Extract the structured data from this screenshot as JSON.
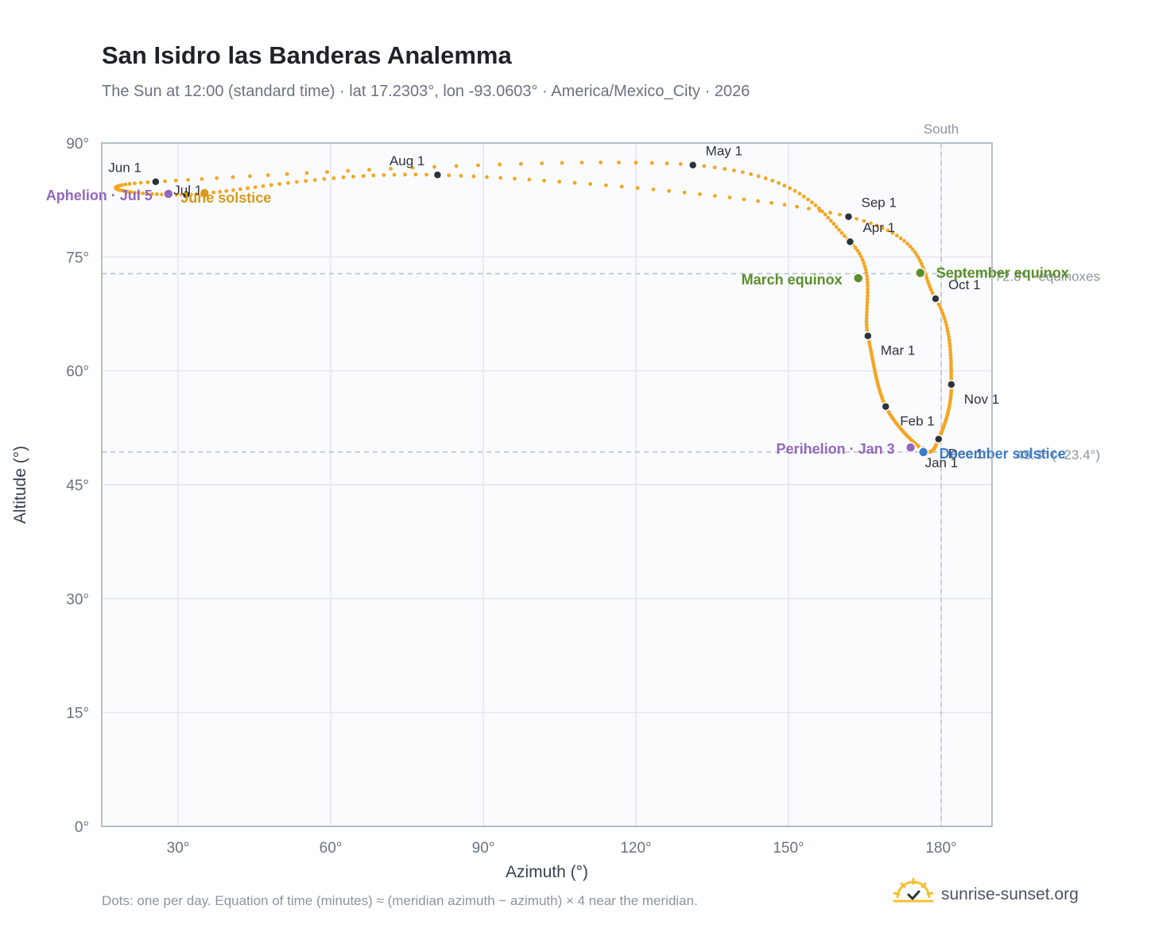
{
  "header": {
    "title": "San Isidro las Banderas Analemma",
    "subtitle": "The Sun at 12:00 (standard time) · lat 17.2303°, lon -93.0603° · America/Mexico_City · 2026"
  },
  "footer": {
    "note": "Dots: one per day. Equation of time (minutes) ≈ (meridian azimuth − azimuth) × 4 near the meridian.",
    "brand": "sunrise-sunset.org",
    "brand_icon": "sun-logo-icon"
  },
  "colors": {
    "path": "#f5a623",
    "month_dot": "#2d333b",
    "equinox": "#5a8f29",
    "solstice_june": "#d99a1a",
    "solstice_december": "#3d7cc9",
    "apsis": "#9467bd",
    "reference_line": "#b7c0c9",
    "plot_bg": "#f9fbfd",
    "grid": "#e3e8ee",
    "frame": "#a0acb8"
  },
  "chart_data": {
    "type": "scatter",
    "xlabel": "Azimuth (°)",
    "ylabel": "Altitude (°)",
    "xlim": [
      15,
      190
    ],
    "ylim": [
      0,
      90
    ],
    "x_ticks": [
      30,
      60,
      90,
      120,
      150,
      180
    ],
    "y_ticks": [
      0,
      15,
      30,
      45,
      60,
      75,
      90
    ],
    "x_tick_labels": [
      "30°",
      "60°",
      "90°",
      "120°",
      "150°",
      "180°"
    ],
    "y_tick_labels": [
      "0°",
      "15°",
      "30°",
      "45°",
      "60°",
      "75°",
      "90°"
    ],
    "grid": true,
    "meridian": {
      "azimuth": 180,
      "label": "South"
    },
    "reference_lines": [
      {
        "altitude": 72.8,
        "label": "72.8° · equinoxes"
      },
      {
        "altitude": 49.3,
        "label": "49.3° (+23.4°)"
      }
    ],
    "month_markers": [
      {
        "label": "Jan 1",
        "azimuth": 176.5,
        "altitude": 49.6
      },
      {
        "label": "Feb 1",
        "azimuth": 169.1,
        "altitude": 55.3
      },
      {
        "label": "Mar 1",
        "azimuth": 165.6,
        "altitude": 64.6
      },
      {
        "label": "Apr 1",
        "azimuth": 162.1,
        "altitude": 77.0
      },
      {
        "label": "May 1",
        "azimuth": 131.2,
        "altitude": 87.1
      },
      {
        "label": "Jun 1",
        "azimuth": 25.6,
        "altitude": 84.9
      },
      {
        "label": "Jul 1",
        "azimuth": 31.6,
        "altitude": 83.2
      },
      {
        "label": "Aug 1",
        "azimuth": 81.0,
        "altitude": 85.8
      },
      {
        "label": "Sep 1",
        "azimuth": 161.8,
        "altitude": 80.3
      },
      {
        "label": "Oct 1",
        "azimuth": 178.9,
        "altitude": 69.5
      },
      {
        "label": "Nov 1",
        "azimuth": 182.0,
        "altitude": 58.2
      },
      {
        "label": "Dec 1",
        "azimuth": 179.5,
        "altitude": 51.0
      }
    ],
    "events": [
      {
        "label": "March equinox",
        "azimuth": 163.7,
        "altitude": 72.2,
        "kind": "equinox"
      },
      {
        "label": "September equinox",
        "azimuth": 175.9,
        "altitude": 72.9,
        "kind": "equinox"
      },
      {
        "label": "June solstice",
        "azimuth": 35.2,
        "altitude": 83.4,
        "kind": "solstice_june"
      },
      {
        "label": "December solstice",
        "azimuth": 176.5,
        "altitude": 49.3,
        "kind": "solstice_december"
      },
      {
        "label": "Perihelion · Jan 3",
        "azimuth": 174.0,
        "altitude": 49.9,
        "kind": "apsis"
      },
      {
        "label": "Aphelion · Jul 5",
        "azimuth": 28.1,
        "altitude": 83.3,
        "kind": "apsis"
      }
    ],
    "path_note": "Approximately one point per day, passing through the month markers in date order and closing back to Jan 1."
  }
}
